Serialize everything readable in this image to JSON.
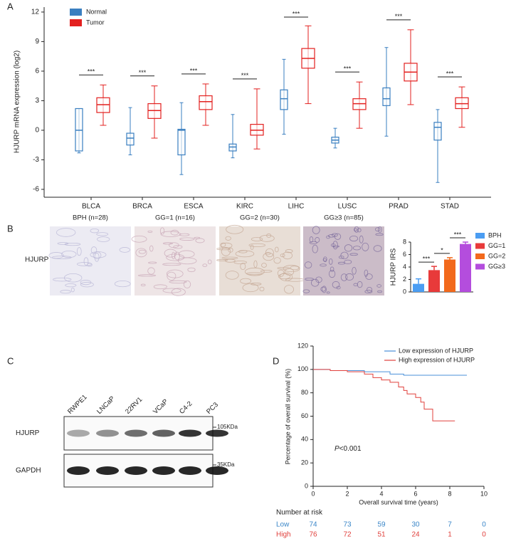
{
  "panel_labels": [
    "A",
    "B",
    "C",
    "D"
  ],
  "histology": {
    "labels": [
      "BPH (n=28)",
      "GG=1 (n=16)",
      "GG=2 (n=30)",
      "GG≥3 (n=85)"
    ],
    "row_label": "HJURP"
  },
  "western_blot": {
    "lanes": [
      "RWPE1",
      "LNCaP",
      "22RV1",
      "VCaP",
      "C4-2",
      "PC3"
    ],
    "rows": [
      "HJURP",
      "GAPDH"
    ],
    "markers": [
      "105KDa",
      "35KDa"
    ]
  },
  "chart_data": [
    {
      "type": "box",
      "ylabel": "HJURP mRNA expression (log2)",
      "categories": [
        "BLCA",
        "BRCA",
        "ESCA",
        "KIRC",
        "LIHC",
        "LUSC",
        "PRAD",
        "STAD"
      ],
      "ylim": [
        -6.8,
        12.5
      ],
      "yticks": [
        -6,
        -3,
        0,
        3,
        6,
        9,
        12
      ],
      "significance": [
        "***",
        "***",
        "***",
        "***",
        "***",
        "***",
        "***",
        "***"
      ],
      "series": [
        {
          "name": "Normal",
          "color": "#3a7fc0",
          "values": [
            {
              "min": -2.3,
              "q1": -2.1,
              "median": 0,
              "q3": 2.2,
              "max": 2.2
            },
            {
              "min": -2.5,
              "q1": -1.5,
              "median": -0.8,
              "q3": -0.3,
              "max": 2.3
            },
            {
              "min": -4.5,
              "q1": -2.5,
              "median": 0,
              "q3": 0.1,
              "max": 2.8
            },
            {
              "min": -2.8,
              "q1": -2.1,
              "median": -1.7,
              "q3": -1.4,
              "max": 1.6
            },
            {
              "min": -0.4,
              "q1": 2.1,
              "median": 3.2,
              "q3": 4.1,
              "max": 7.2
            },
            {
              "min": -1.8,
              "q1": -1.3,
              "median": -1,
              "q3": -0.7,
              "max": 0.2
            },
            {
              "min": -0.6,
              "q1": 2.5,
              "median": 3.2,
              "q3": 4.3,
              "max": 8.4
            },
            {
              "min": -5.3,
              "q1": -1,
              "median": 0.3,
              "q3": 0.8,
              "max": 2.1
            }
          ]
        },
        {
          "name": "Tumor",
          "color": "#e3201f",
          "values": [
            {
              "min": 0.5,
              "q1": 1.8,
              "median": 2.6,
              "q3": 3.3,
              "max": 4.6
            },
            {
              "min": -0.8,
              "q1": 1.2,
              "median": 2,
              "q3": 2.7,
              "max": 4.5
            },
            {
              "min": 0.5,
              "q1": 2.1,
              "median": 2.9,
              "q3": 3.5,
              "max": 4.7
            },
            {
              "min": -1.9,
              "q1": -0.5,
              "median": 0,
              "q3": 0.6,
              "max": 4.2
            },
            {
              "min": 2.7,
              "q1": 6.3,
              "median": 7.3,
              "q3": 8.3,
              "max": 10.6
            },
            {
              "min": 0.2,
              "q1": 2.1,
              "median": 2.7,
              "q3": 3.2,
              "max": 4.9
            },
            {
              "min": 2.6,
              "q1": 5,
              "median": 5.9,
              "q3": 6.8,
              "max": 10.2
            },
            {
              "min": 0.3,
              "q1": 2.2,
              "median": 2.7,
              "q3": 3.3,
              "max": 4.4
            }
          ]
        }
      ]
    },
    {
      "type": "bar",
      "ylabel": "HJURP IRS",
      "categories": [
        "BPH",
        "GG=1",
        "GG=2",
        "GG≥3"
      ],
      "values": [
        1.3,
        3.5,
        5.2,
        7.7
      ],
      "errors": [
        0.8,
        0.6,
        0.3,
        0.3
      ],
      "colors": [
        "#4b9df2",
        "#e83a3a",
        "#f2691c",
        "#b44ddd"
      ],
      "significance": [
        "***",
        "*",
        "***"
      ],
      "ylim": [
        0,
        8
      ],
      "yticks": [
        0,
        2,
        4,
        6,
        8
      ]
    },
    {
      "type": "line",
      "ylabel": "Percentage of overall survival (%)",
      "xlabel": "Overall survival time (years)",
      "xlim": [
        0,
        10
      ],
      "xticks": [
        0,
        2,
        4,
        6,
        8,
        10
      ],
      "ylim": [
        0,
        120
      ],
      "yticks": [
        0,
        20,
        40,
        60,
        80,
        100,
        120
      ],
      "annotation": {
        "italic": "P",
        "text": "<0.001"
      },
      "series": [
        {
          "name": "Low expression of HJURP",
          "color": "#4a90d9",
          "x": [
            0,
            1,
            1,
            3,
            3,
            4.5,
            4.5,
            5.3,
            5.3,
            9
          ],
          "values": [
            100,
            100,
            99,
            99,
            98,
            98,
            96,
            96,
            95,
            95
          ]
        },
        {
          "name": "High expression of HJURP",
          "color": "#e0403c",
          "x": [
            0,
            1,
            1,
            2,
            2,
            3,
            3,
            3.5,
            3.5,
            4,
            4,
            4.5,
            4.5,
            5,
            5,
            5.3,
            5.3,
            5.5,
            5.5,
            6,
            6,
            6.3,
            6.3,
            6.5,
            6.5,
            7,
            7,
            8.3
          ],
          "values": [
            100,
            100,
            99,
            99,
            98,
            98,
            96,
            96,
            93,
            93,
            91,
            91,
            89,
            89,
            85,
            85,
            82,
            82,
            79,
            79,
            76,
            76,
            72,
            72,
            66,
            66,
            56,
            56
          ]
        }
      ],
      "risk_table": {
        "title": "Number at risk",
        "rows": [
          {
            "name": "Low",
            "color": "#3a86c8",
            "values": [
              74,
              73,
              59,
              30,
              7,
              0
            ]
          },
          {
            "name": "High",
            "color": "#e0403c",
            "values": [
              76,
              72,
              51,
              24,
              1,
              0
            ]
          }
        ]
      }
    }
  ]
}
